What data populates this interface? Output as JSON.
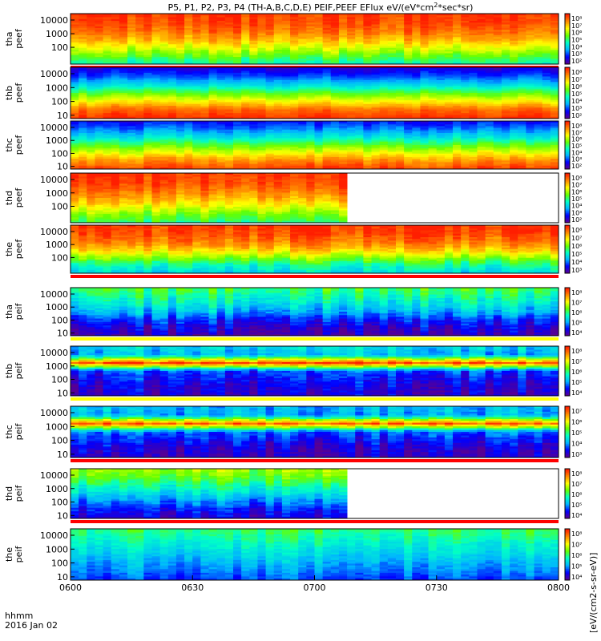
{
  "chart_data": {
    "type": "heatmap",
    "title": "P5, P1, P2, P3, P4 (TH-A,B,C,D,E) PEIF,PEEF EFlux eV/(eV*cm",
    "title_sup": "2",
    "title_tail": "*sec*sr)",
    "time_axis": {
      "label_line1": "hhmm",
      "label_line2": "2016 Jan 02",
      "ticks": [
        "0600",
        "0630",
        "0700",
        "0730",
        "0800"
      ],
      "range_minutes": [
        0,
        120
      ]
    },
    "y_ticks": [
      "10000",
      "1000",
      "100",
      "10"
    ],
    "y_scale": "log",
    "colorbar_label": "[eV/(cm2-s-sr-eV)]",
    "colormap": [
      "#5a0090",
      "#0000ff",
      "#00b4ff",
      "#00ffc8",
      "#64ff00",
      "#ffff00",
      "#ff8c00",
      "#ff1e00"
    ],
    "panels": [
      {
        "label1": "tha",
        "label2": "peef",
        "ytick_count": 3,
        "cbar_ticks": [
          "10⁸",
          "10⁷",
          "10⁶",
          "10⁵",
          "10⁴",
          "10³",
          "10²"
        ],
        "data_until_min": 120,
        "profile": [
          0.97,
          0.95,
          0.9,
          0.82,
          0.7,
          0.58,
          0.45
        ],
        "variability": 0.06,
        "stripe_bottom": "#ff0000"
      },
      {
        "label1": "thb",
        "label2": "peef",
        "ytick_count": 4,
        "cbar_ticks": [
          "10⁸",
          "10⁷",
          "10⁶",
          "10⁵",
          "10⁴",
          "10³",
          "10²"
        ],
        "data_until_min": 120,
        "profile": [
          0.1,
          0.2,
          0.35,
          0.55,
          0.72,
          0.9,
          0.98
        ],
        "variability": 0.04,
        "stripe_bottom": ""
      },
      {
        "label1": "thc",
        "label2": "peef",
        "ytick_count": 4,
        "cbar_ticks": [
          "10⁸",
          "10⁷",
          "10⁶",
          "10⁵",
          "10⁴",
          "10³",
          "10²"
        ],
        "data_until_min": 120,
        "profile": [
          0.15,
          0.25,
          0.38,
          0.55,
          0.7,
          0.85,
          0.95
        ],
        "variability": 0.05,
        "stripe_bottom": ""
      },
      {
        "label1": "thd",
        "label2": "peef",
        "ytick_count": 3,
        "cbar_ticks": [
          "10⁸",
          "10⁷",
          "10⁶",
          "10⁵",
          "10⁴",
          "10³",
          "10²"
        ],
        "data_until_min": 68,
        "profile": [
          0.97,
          0.95,
          0.9,
          0.82,
          0.72,
          0.6,
          0.5
        ],
        "variability": 0.06,
        "stripe_bottom": ""
      },
      {
        "label1": "the",
        "label2": "peef",
        "ytick_count": 3,
        "cbar_ticks": [
          "10⁸",
          "10⁷",
          "10⁶",
          "10⁵",
          "10⁴",
          "10³"
        ],
        "data_until_min": 120,
        "profile": [
          0.97,
          0.94,
          0.88,
          0.78,
          0.62,
          0.45,
          0.35
        ],
        "variability": 0.07,
        "stripe_bottom": "#ff0000"
      },
      {
        "label1": "tha",
        "label2": "peif",
        "ytick_count": 4,
        "cbar_ticks": [
          "10⁸",
          "10⁷",
          "10⁶",
          "10⁵",
          "10⁴"
        ],
        "data_until_min": 120,
        "profile": [
          0.52,
          0.45,
          0.38,
          0.3,
          0.18,
          0.1,
          0.05
        ],
        "variability": 0.08,
        "stripe_bottom": "#ffff00"
      },
      {
        "label1": "thb",
        "label2": "peif",
        "ytick_count": 4,
        "cbar_ticks": [
          "10⁸",
          "10⁷",
          "10⁶",
          "10⁵",
          "10⁴"
        ],
        "data_until_min": 120,
        "profile": [
          0.35,
          0.3,
          0.95,
          0.2,
          0.15,
          0.1,
          0.08
        ],
        "variability": 0.08,
        "stripe_bottom": "#ffff00"
      },
      {
        "label1": "thc",
        "label2": "peif",
        "ytick_count": 4,
        "cbar_ticks": [
          "10⁷",
          "10⁶",
          "10⁵",
          "10⁴",
          "10³"
        ],
        "data_until_min": 120,
        "profile": [
          0.3,
          0.28,
          0.9,
          0.22,
          0.15,
          0.08,
          0.06
        ],
        "variability": 0.08,
        "stripe_bottom": "#ff0000"
      },
      {
        "label1": "thd",
        "label2": "peif",
        "ytick_count": 4,
        "cbar_ticks": [
          "10⁸",
          "10⁷",
          "10⁶",
          "10⁵",
          "10⁴"
        ],
        "data_until_min": 68,
        "profile": [
          0.62,
          0.55,
          0.45,
          0.35,
          0.25,
          0.15,
          0.1
        ],
        "variability": 0.08,
        "stripe_bottom": "#ff0000"
      },
      {
        "label1": "the",
        "label2": "peif",
        "ytick_count": 4,
        "cbar_ticks": [
          "10⁸",
          "10⁷",
          "10⁶",
          "10⁵",
          "10⁴"
        ],
        "data_until_min": 120,
        "profile": [
          0.5,
          0.45,
          0.4,
          0.35,
          0.3,
          0.25,
          0.2
        ],
        "variability": 0.06,
        "stripe_bottom": ""
      }
    ]
  }
}
